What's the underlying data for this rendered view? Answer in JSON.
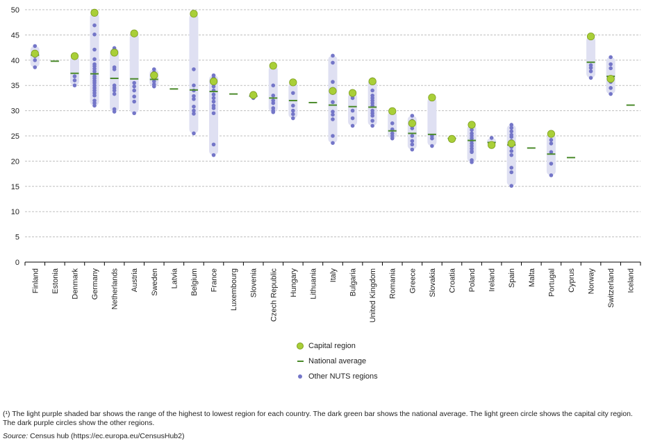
{
  "chart_data": {
    "type": "scatter",
    "ylim": [
      0,
      50
    ],
    "y_ticks": [
      0,
      5,
      10,
      15,
      20,
      25,
      30,
      35,
      40,
      45,
      50
    ],
    "grid": true,
    "legend_placement": "bottom-center",
    "colors": {
      "range_bar": "#dfe0f2",
      "capital": "#a9cf38",
      "capital_edge": "#7d9e1f",
      "national": "#4a8a2a",
      "other": "#7476c8",
      "grid": "#bfbfbf"
    },
    "legend": [
      {
        "key": "capital",
        "label": "Capital region"
      },
      {
        "key": "national",
        "label": "National average"
      },
      {
        "key": "other",
        "label": "Other NUTS regions"
      }
    ],
    "countries": [
      {
        "name": "Finland",
        "avg": 41.0,
        "capital": 41.3,
        "others": [
          42.8,
          40.8,
          40.0,
          38.6
        ]
      },
      {
        "name": "Estonia",
        "avg": 39.8,
        "capital": null,
        "others": []
      },
      {
        "name": "Denmark",
        "avg": 37.4,
        "capital": 40.8,
        "others": [
          36.8,
          36.0,
          35.0
        ]
      },
      {
        "name": "Germany",
        "avg": 37.3,
        "capital": 49.4,
        "others": [
          46.9,
          45.1,
          42.1,
          40.2,
          39.2,
          38.8,
          38.3,
          37.8,
          37.3,
          36.8,
          36.4,
          35.9,
          35.5,
          35.0,
          34.5,
          34.0,
          33.5,
          33.0,
          32.0,
          31.5,
          31.0
        ]
      },
      {
        "name": "Netherlands",
        "avg": 36.4,
        "capital": 41.5,
        "others": [
          42.4,
          42.0,
          38.6,
          38.2,
          35.0,
          34.5,
          34.0,
          33.3,
          30.3,
          29.8
        ]
      },
      {
        "name": "Austria",
        "avg": 36.3,
        "capital": 45.3,
        "others": [
          35.5,
          34.8,
          34.0,
          32.8,
          31.8,
          29.5
        ]
      },
      {
        "name": "Sweden",
        "avg": 36.2,
        "capital": 37.0,
        "others": [
          38.2,
          37.6,
          36.8,
          36.4,
          35.8,
          35.2,
          34.8
        ]
      },
      {
        "name": "Latvia",
        "avg": 34.3,
        "capital": null,
        "others": []
      },
      {
        "name": "Belgium",
        "avg": 34.1,
        "capital": 49.2,
        "others": [
          38.2,
          35.0,
          34.0,
          32.9,
          32.3,
          30.8,
          30.0,
          29.4,
          25.5
        ]
      },
      {
        "name": "France",
        "avg": 33.8,
        "capital": 35.8,
        "others": [
          37.0,
          36.5,
          36.0,
          35.5,
          34.8,
          34.0,
          33.2,
          32.5,
          31.8,
          31.0,
          30.5,
          29.5,
          23.3,
          21.2
        ]
      },
      {
        "name": "Luxembourg",
        "avg": 33.3,
        "capital": null,
        "others": []
      },
      {
        "name": "Slovenia",
        "avg": 32.9,
        "capital": 33.1,
        "others": [
          32.5
        ]
      },
      {
        "name": "Czech Republic",
        "avg": 32.5,
        "capital": 38.9,
        "others": [
          35.0,
          33.0,
          32.0,
          31.5,
          30.5,
          30.0,
          29.7
        ]
      },
      {
        "name": "Hungary",
        "avg": 32.0,
        "capital": 35.6,
        "others": [
          33.5,
          31.0,
          30.0,
          29.3,
          28.5
        ]
      },
      {
        "name": "Lithuania",
        "avg": 31.6,
        "capital": null,
        "others": []
      },
      {
        "name": "Italy",
        "avg": 31.1,
        "capital": 33.9,
        "others": [
          40.9,
          39.5,
          35.7,
          34.3,
          33.5,
          31.7,
          29.8,
          29.2,
          28.3,
          25.0,
          23.6
        ]
      },
      {
        "name": "Bulgaria",
        "avg": 30.8,
        "capital": 33.5,
        "others": [
          32.5,
          30.0,
          28.5,
          27.0
        ]
      },
      {
        "name": "United Kingdom",
        "avg": 30.7,
        "capital": 35.8,
        "others": [
          36.2,
          34.0,
          33.0,
          32.5,
          32.0,
          31.5,
          31.0,
          30.0,
          29.5,
          29.0,
          28.0,
          27.0
        ]
      },
      {
        "name": "Romania",
        "avg": 26.0,
        "capital": 29.9,
        "others": [
          27.5,
          26.3,
          25.5,
          25.0,
          24.5
        ]
      },
      {
        "name": "Greece",
        "avg": 25.5,
        "capital": 27.5,
        "others": [
          29.0,
          28.0,
          26.5,
          25.0,
          24.0,
          23.3,
          22.3
        ]
      },
      {
        "name": "Slovakia",
        "avg": 25.3,
        "capital": 32.6,
        "others": [
          25.0,
          24.5,
          23.0
        ]
      },
      {
        "name": "Croatia",
        "avg": 24.5,
        "capital": 24.4,
        "others": [
          24.6
        ]
      },
      {
        "name": "Poland",
        "avg": 24.1,
        "capital": 27.2,
        "others": [
          26.2,
          25.5,
          25.0,
          24.5,
          24.0,
          23.5,
          23.0,
          22.5,
          22.0,
          21.8,
          20.2,
          19.8
        ]
      },
      {
        "name": "Ireland",
        "avg": 23.7,
        "capital": 23.2,
        "others": [
          24.6
        ]
      },
      {
        "name": "Spain",
        "avg": 23.2,
        "capital": 23.5,
        "others": [
          27.2,
          26.6,
          25.9,
          25.2,
          24.8,
          24.0,
          23.5,
          22.8,
          22.0,
          21.2,
          18.7,
          17.8,
          15.1
        ]
      },
      {
        "name": "Malta",
        "avg": 22.6,
        "capital": null,
        "others": []
      },
      {
        "name": "Portugal",
        "avg": 21.4,
        "capital": 25.4,
        "others": [
          24.2,
          23.5,
          21.8,
          19.5,
          17.2
        ]
      },
      {
        "name": "Cyprus",
        "avg": 20.7,
        "capital": null,
        "others": []
      },
      {
        "name": "Norway",
        "avg": 39.6,
        "capital": 44.7,
        "others": [
          39.0,
          38.5,
          37.8,
          36.5
        ]
      },
      {
        "name": "Switzerland",
        "avg": 36.8,
        "capital": 36.3,
        "others": [
          40.6,
          39.2,
          38.4,
          35.7,
          34.5,
          33.3
        ]
      },
      {
        "name": "Iceland",
        "avg": 31.1,
        "capital": null,
        "others": []
      }
    ]
  },
  "footnote": "(¹) The light purple shaded bar shows the range of the highest to lowest region for each country. The dark green bar shows the national average. The light green circle shows the capital city region. The dark purple circles show the other regions.",
  "source_label": "Source:",
  "source_text": " Census hub (https://ec.europa.eu/CensusHub2)"
}
